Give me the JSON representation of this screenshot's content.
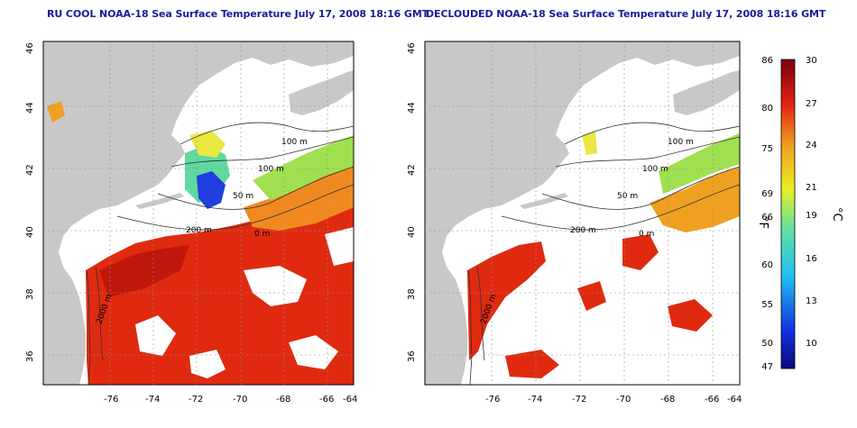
{
  "maps": [
    {
      "title": "RU COOL NOAA-18 Sea Surface Temperature July 17, 2008 18:16 GMT",
      "x_ticks": [
        "-76",
        "-74",
        "-72",
        "-70",
        "-68",
        "-66",
        "-64"
      ],
      "y_ticks": [
        "46",
        "44",
        "42",
        "40",
        "38",
        "36"
      ],
      "contour_labels": [
        "100 m",
        "100 m",
        "50 m",
        "200 m",
        "0 m",
        "2000 m"
      ]
    },
    {
      "title": "DECLOUDED NOAA-18 Sea Surface Temperature July 17, 2008 18:16 GMT",
      "x_ticks": [
        "-76",
        "-74",
        "-72",
        "-70",
        "-68",
        "-66",
        "-64"
      ],
      "y_ticks": [
        "46",
        "44",
        "42",
        "40",
        "38",
        "36"
      ],
      "contour_labels": [
        "100 m",
        "100 m",
        "50 m",
        "200 m",
        "0 m",
        "2000 m"
      ]
    }
  ],
  "colorbar": {
    "fahrenheit_ticks": [
      "86",
      "80",
      "75",
      "69",
      "66",
      "60",
      "55",
      "50",
      "47"
    ],
    "celsius_ticks": [
      "30",
      "27",
      "24",
      "21",
      "19",
      "16",
      "13",
      "10"
    ],
    "fahrenheit_label": "°F",
    "celsius_label": "°C",
    "colors": {
      "hot": "#7a0010",
      "red": "#e02010",
      "orange": "#f08020",
      "yellow": "#f0e020",
      "green": "#70e070",
      "cyan": "#20c0f0",
      "blue": "#2040e0",
      "cold": "#0a0a80"
    }
  },
  "colors": {
    "land": "#c8c8c8",
    "cloud": "#ffffff",
    "title": "#1a1aa0",
    "contour": "#303030"
  }
}
